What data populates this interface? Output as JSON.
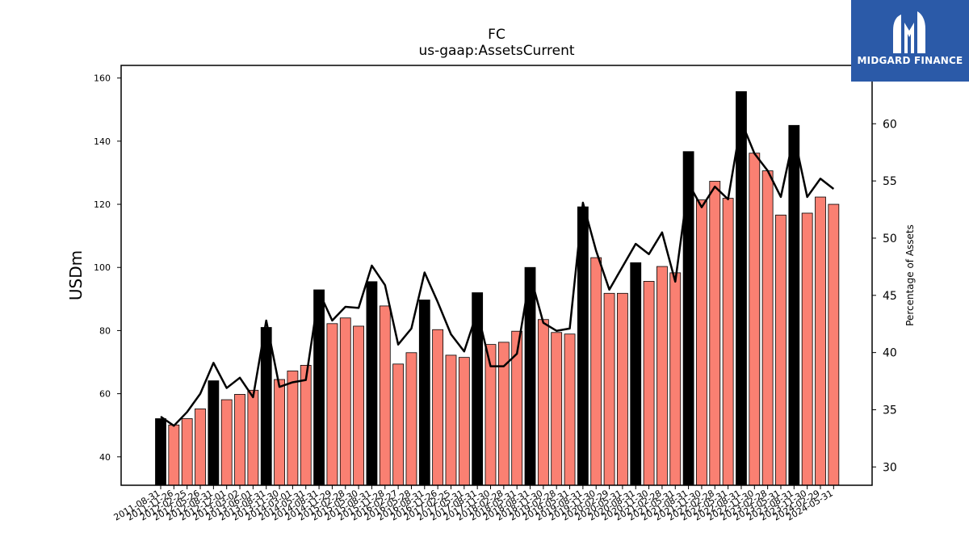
{
  "chart_data": {
    "type": "bar",
    "title": "FC",
    "subtitle": "us-gaap:AssetsCurrent",
    "ylabel": "USDm",
    "y2label": "Percentage of Assets",
    "ylim": [
      31,
      164
    ],
    "y2lim": [
      28.4,
      65.1
    ],
    "yticks": [
      40,
      60,
      80,
      100,
      120,
      140,
      160
    ],
    "y2ticks": [
      30,
      35,
      40,
      45,
      50,
      55,
      60
    ],
    "categories": [
      "2011-08-31",
      "2011-11-26",
      "2012-02-25",
      "2012-05-26",
      "2012-08-31",
      "2012-12-01",
      "2013-03-02",
      "2013-06-01",
      "2013-08-31",
      "2013-11-30",
      "2014-03-01",
      "2014-05-31",
      "2014-08-31",
      "2014-11-29",
      "2015-02-28",
      "2015-05-30",
      "2015-08-31",
      "2015-11-28",
      "2016-02-27",
      "2016-05-28",
      "2016-08-31",
      "2016-11-26",
      "2017-02-25",
      "2017-05-31",
      "2017-08-31",
      "2017-11-30",
      "2018-02-28",
      "2018-05-31",
      "2018-08-31",
      "2018-11-30",
      "2019-02-28",
      "2019-05-31",
      "2019-08-31",
      "2019-11-30",
      "2020-02-29",
      "2020-05-31",
      "2020-08-31",
      "2020-11-30",
      "2021-02-28",
      "2021-05-31",
      "2021-08-31",
      "2021-11-30",
      "2022-02-28",
      "2022-05-31",
      "2022-08-31",
      "2022-11-30",
      "2023-02-28",
      "2023-05-31",
      "2023-08-31",
      "2023-11-30",
      "2024-02-29",
      "2024-05-31"
    ],
    "bar_series": {
      "name": "AssetsCurrent",
      "values": [
        52.1,
        50.1,
        52.1,
        55.2,
        64.1,
        58.1,
        59.8,
        61.1,
        81.0,
        64.5,
        67.2,
        69.0,
        92.9,
        82.2,
        84.0,
        81.4,
        95.5,
        87.8,
        69.4,
        73.0,
        89.7,
        80.3,
        72.2,
        71.5,
        92.0,
        75.6,
        76.3,
        79.8,
        100.0,
        83.5,
        79.4,
        78.9,
        119.2,
        103.1,
        91.8,
        91.8,
        101.5,
        95.6,
        100.3,
        98.3,
        136.7,
        121.4,
        127.3,
        121.9,
        155.7,
        136.2,
        130.6,
        116.6,
        145.0,
        117.2,
        122.3,
        120.0
      ],
      "fiscal_year_end_color": "#000000",
      "quarter_color": "#fa8072"
    },
    "line_series": {
      "name": "Percentage of Assets",
      "color": "#000000",
      "values": [
        34.4,
        33.6,
        34.8,
        36.4,
        39.1,
        36.9,
        37.8,
        36.1,
        42.8,
        37.0,
        37.4,
        37.6,
        45.3,
        42.8,
        44.0,
        43.9,
        47.6,
        45.9,
        40.7,
        42.1,
        47.0,
        44.4,
        41.6,
        40.1,
        43.6,
        38.8,
        38.8,
        39.9,
        46.8,
        42.6,
        41.9,
        42.1,
        53.1,
        48.9,
        45.5,
        47.5,
        49.5,
        48.6,
        50.5,
        46.2,
        54.8,
        52.7,
        54.5,
        53.4,
        60.2,
        57.4,
        55.9,
        53.6,
        59.0,
        53.6,
        55.2,
        54.3
      ]
    },
    "grid": false,
    "legend": "none"
  },
  "logo": {
    "text": "MIDGARD FINANCE",
    "background": "#2b5aa8",
    "text_color": "#ffffff"
  }
}
